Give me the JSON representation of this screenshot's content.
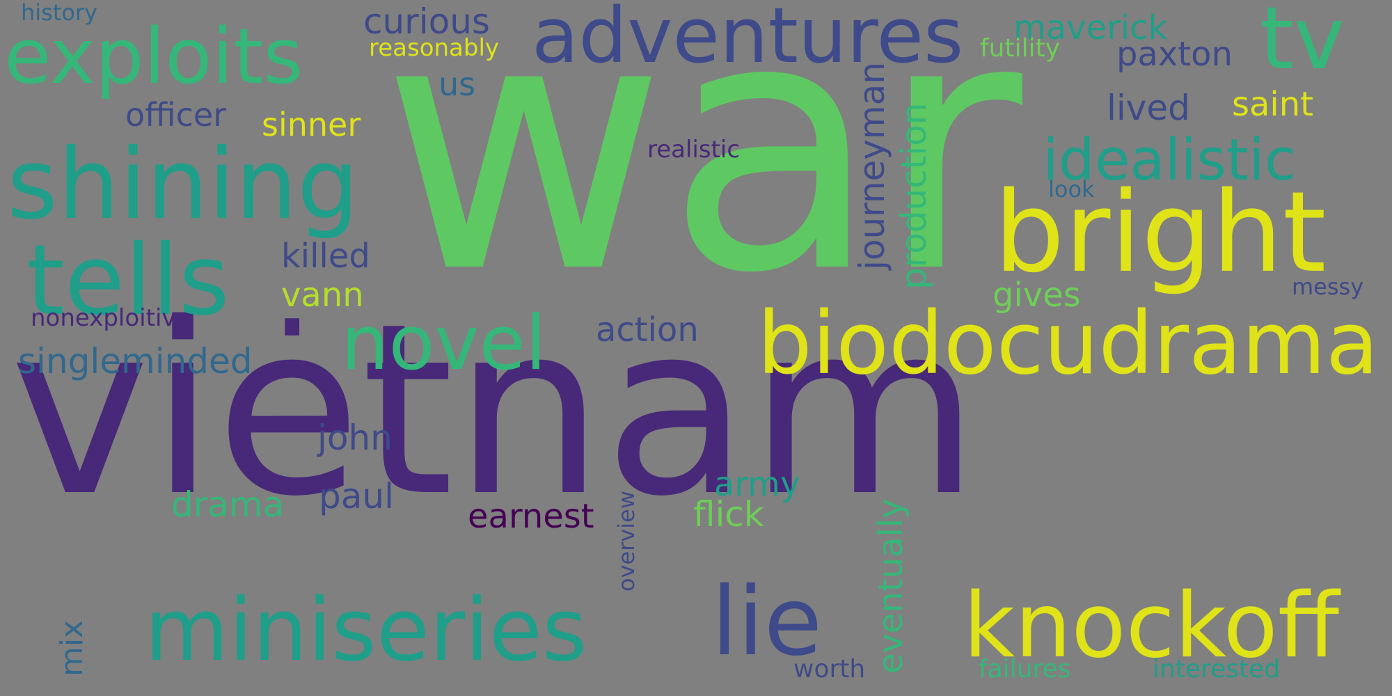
{
  "cloud": {
    "background": "#808080",
    "palette": {
      "dark_purple": "#440154",
      "purple": "#482878",
      "indigo": "#3e4a89",
      "blue": "#31688e",
      "teal_blue": "#26828e",
      "teal": "#1f9e89",
      "green": "#35b779",
      "light_green": "#6ece58",
      "lime": "#b5de2b",
      "yellow": "#fde725"
    },
    "words": {
      "war": "war",
      "vietnam": "vietnam",
      "bright": "bright",
      "biodocudrama": "biodocudrama",
      "knockoff": "knockoff",
      "miniseries": "miniseries",
      "lie": "lie",
      "tells": "tells",
      "shining": "shining",
      "exploits": "exploits",
      "adventures": "adventures",
      "tv": "tv",
      "novel": "novel",
      "idealistic": "idealistic",
      "dot": ".",
      "curious": "curious",
      "reasonably": "reasonably",
      "history": "history",
      "maverick": "maverick",
      "futility": "futility",
      "paxton": "paxton",
      "officer": "officer",
      "sinner": "sinner",
      "us": "us",
      "lived": "lived",
      "saint": "saint",
      "realistic": "realistic",
      "look": "look",
      "journeyman": "journeyman",
      "production": "production",
      "killed": "killed",
      "vann": "vann",
      "gives": "gives",
      "messy": "messy",
      "nonexploitive": "nonexploitive",
      "action": "action",
      "singleminded": "singleminded",
      "john": "john",
      "paul": "paul",
      "drama": "drama",
      "army": "army",
      "earnest": "earnest",
      "flick": "flick",
      "overview": "overview",
      "eventually": "eventually",
      "mix": "mix",
      "worth": "worth",
      "failures": "failures",
      "interested": "interested"
    }
  }
}
